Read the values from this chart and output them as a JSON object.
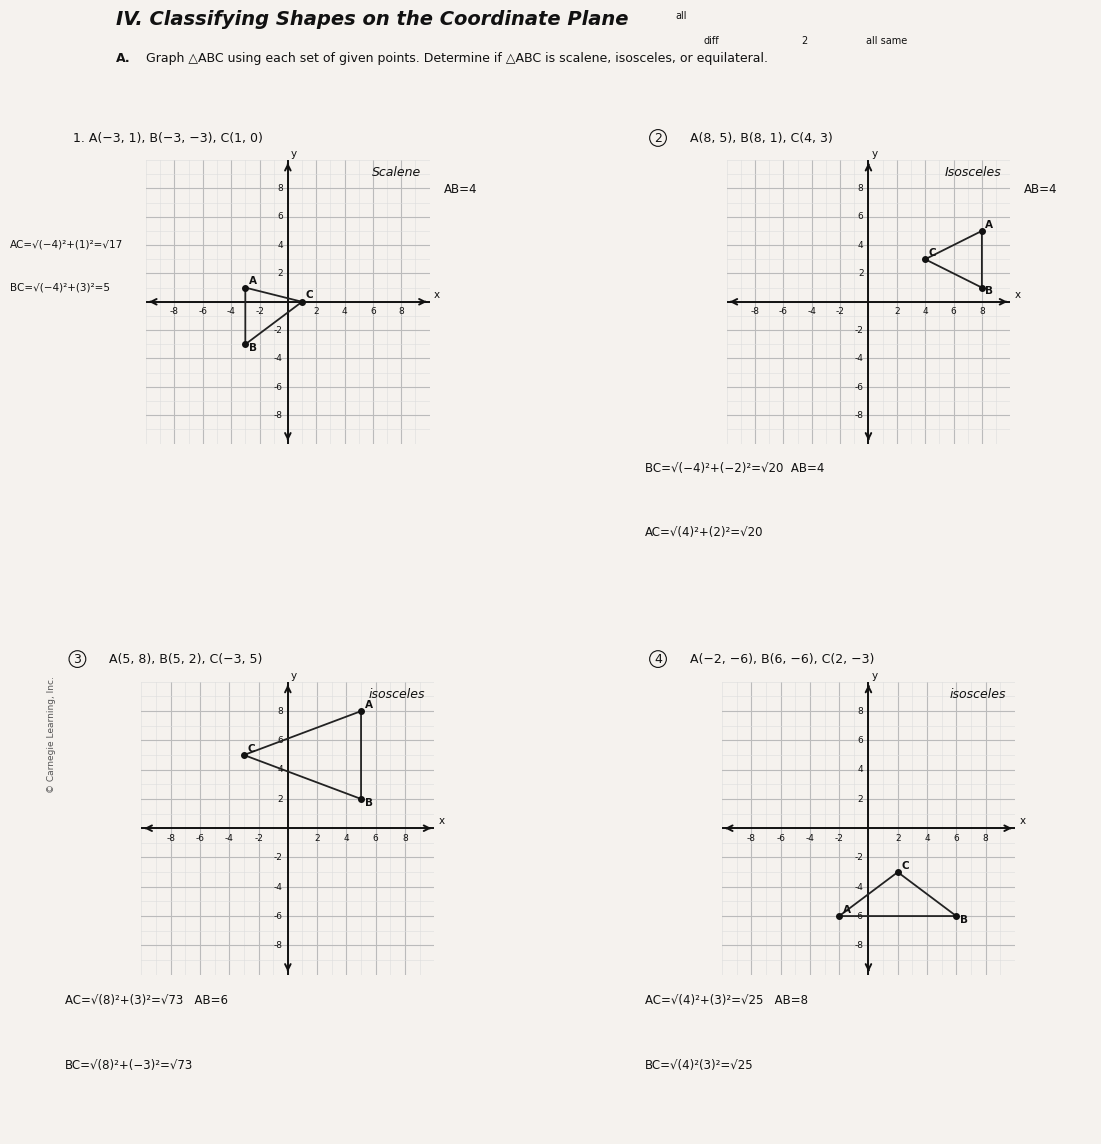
{
  "title": "IV. Classifying Shapes on the Coordinate Plane",
  "subtitle_bold": "A.",
  "subtitle_rest": " Graph △ABC using each set of given points. Determine if △ABC is scalene, isosceles, or equilateral.",
  "header_annotation": "all\ndiff      2      all same",
  "problems": [
    {
      "number": "1.",
      "circled": false,
      "label": "A(−3, 1), B(−3, −3), C(1, 0)",
      "A": [
        -3,
        1
      ],
      "B": [
        -3,
        -3
      ],
      "C": [
        1,
        0
      ],
      "classification": "Scalene",
      "notes_left": [
        "AC=√(−4)²+(1)²=√17",
        "BC=√(−4)²+(3)²=5"
      ],
      "notes_right": "AB=4",
      "notes_bottom": [],
      "xlim": [
        -10,
        10
      ],
      "ylim": [
        -10,
        10
      ],
      "xticks": [
        -8,
        -6,
        -4,
        -2,
        0,
        2,
        4,
        6,
        8
      ],
      "yticks": [
        -8,
        -6,
        -4,
        -2,
        0,
        2,
        4,
        6,
        8
      ]
    },
    {
      "number": "2.",
      "circled": true,
      "label": "A(8, 5), B(8, 1), C(4, 3)",
      "A": [
        8,
        5
      ],
      "B": [
        8,
        1
      ],
      "C": [
        4,
        3
      ],
      "classification": "Isosceles",
      "notes_left": [],
      "notes_right": "AB=4",
      "notes_bottom": [
        "BC=√(−4)²+(−2)²=√20  AB=4",
        "AC=√(4)²+(2)²=√20"
      ],
      "xlim": [
        -10,
        10
      ],
      "ylim": [
        -10,
        10
      ],
      "xticks": [
        -8,
        -6,
        -4,
        -2,
        0,
        2,
        4,
        6,
        8
      ],
      "yticks": [
        -8,
        -6,
        -4,
        -2,
        0,
        2,
        4,
        6,
        8
      ]
    },
    {
      "number": "3.",
      "circled": true,
      "label": "A(5, 8), B(5, 2), C(−3, 5)",
      "A": [
        5,
        8
      ],
      "B": [
        5,
        2
      ],
      "C": [
        -3,
        5
      ],
      "classification": "isosceles",
      "notes_left": [],
      "notes_right": "",
      "notes_bottom": [
        "AC=√(8)²+(3)²=√73   AB=6",
        "BC=√(8)²+(−3)²=√73"
      ],
      "xlim": [
        -10,
        10
      ],
      "ylim": [
        -10,
        10
      ],
      "xticks": [
        -8,
        -6,
        -4,
        -2,
        0,
        2,
        4,
        6,
        8
      ],
      "yticks": [
        -8,
        -6,
        -4,
        -2,
        0,
        2,
        4,
        6,
        8
      ]
    },
    {
      "number": "4.",
      "circled": true,
      "label": "A(−2, −6), B(6, −6), C(2, −3)",
      "A": [
        -2,
        -6
      ],
      "B": [
        6,
        -6
      ],
      "C": [
        2,
        -3
      ],
      "classification": "isosceles",
      "notes_left": [],
      "notes_right": "",
      "notes_bottom": [
        "AC=√(4)²+(3)²=√25   AB=8",
        "BC=√(4)²(3)²=√25"
      ],
      "xlim": [
        -10,
        10
      ],
      "ylim": [
        -10,
        10
      ],
      "xticks": [
        -8,
        -6,
        -4,
        -2,
        0,
        2,
        4,
        6,
        8
      ],
      "yticks": [
        -8,
        -6,
        -4,
        -2,
        0,
        2,
        4,
        6,
        8
      ]
    }
  ],
  "bg_color": "#f5f2ee",
  "grid_color_minor": "#dddddd",
  "grid_color_major": "#bbbbbb",
  "axis_color": "#111111",
  "triangle_color": "#222222",
  "point_color": "#111111",
  "text_color": "#111111",
  "label_fontsize": 8.5,
  "tick_fontsize": 6.5,
  "title_fontsize": 14,
  "subtitle_fontsize": 9,
  "problem_fontsize": 9,
  "classif_fontsize": 9
}
